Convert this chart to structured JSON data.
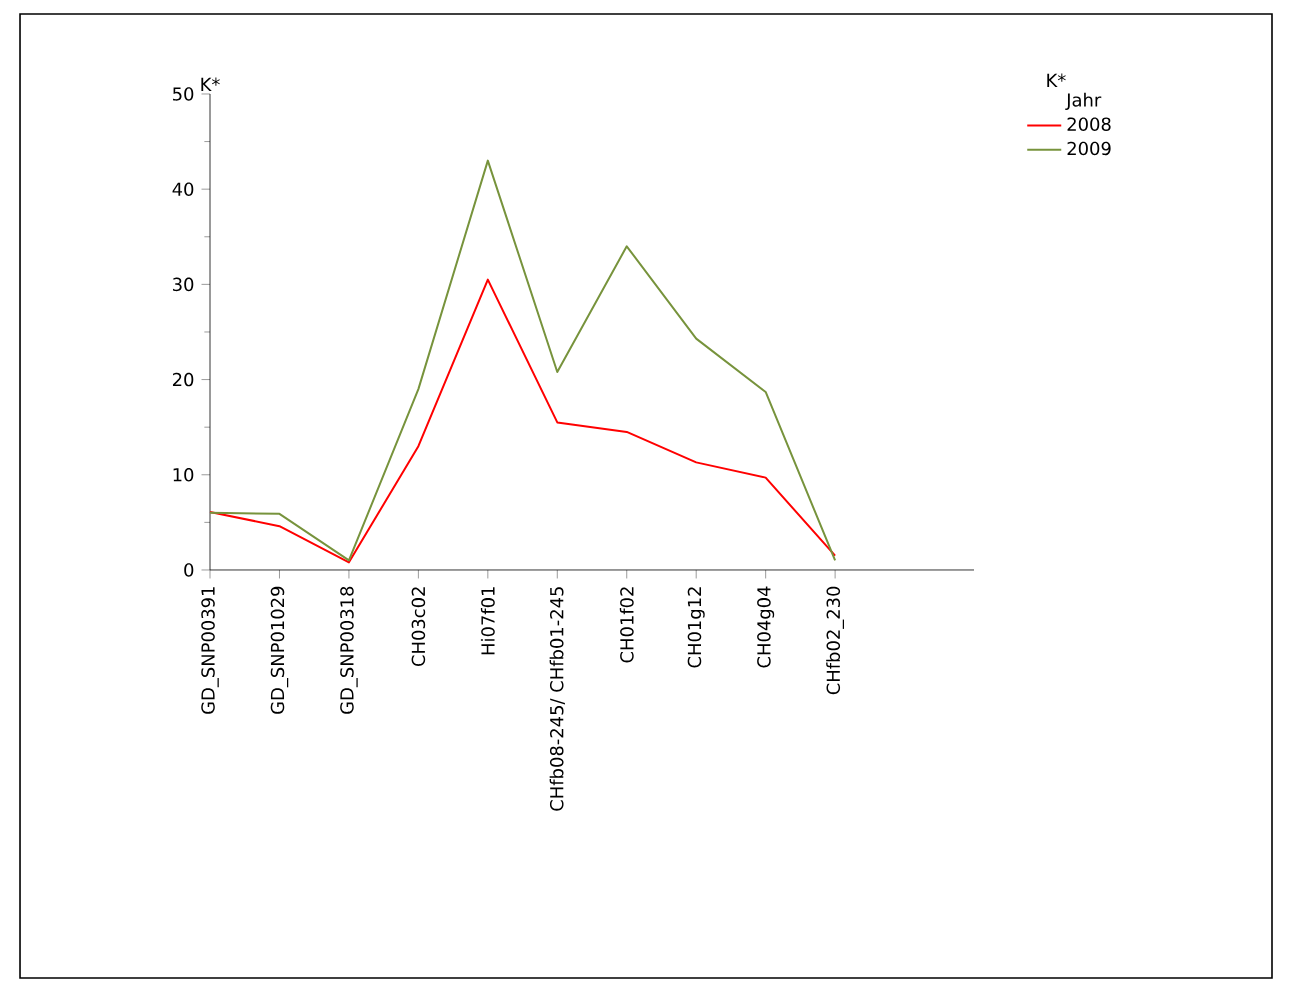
{
  "chart_data": {
    "type": "line",
    "ylabel": "K*",
    "legend_title": "Jahr",
    "annotations": [
      "K*"
    ],
    "categories": [
      "GD_SNP00391",
      "GD_SNP01029",
      "GD_SNP00318",
      "CH03c02",
      "Hi07f01",
      "CHfb08-245/ CHfb01-245",
      "CH01f02",
      "CH01g12",
      "CH04g04",
      "CHfb02_230"
    ],
    "series": [
      {
        "name": "2008",
        "color": "#ff0000",
        "values": [
          6.1,
          4.6,
          0.8,
          13.0,
          30.5,
          15.5,
          14.5,
          11.3,
          9.7,
          1.5
        ]
      },
      {
        "name": "2009",
        "color": "#77933c",
        "values": [
          6.0,
          5.9,
          1.0,
          19.0,
          43.0,
          20.8,
          34.0,
          24.3,
          18.7,
          1.0
        ]
      }
    ],
    "ylim": [
      0,
      50
    ],
    "yticks": [
      0,
      10,
      20,
      30,
      40,
      50
    ],
    "grid": false,
    "legend": "right",
    "marker": "none",
    "line_style": "solid"
  }
}
